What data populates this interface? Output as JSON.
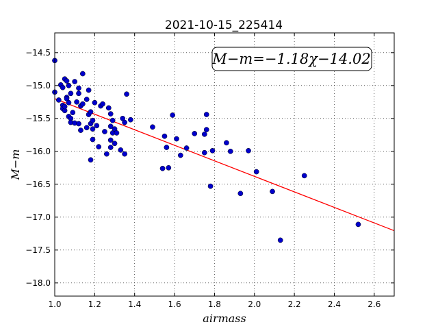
{
  "chart_data": {
    "type": "scatter",
    "title": "2021-10-15_225414",
    "xlabel": "airmass",
    "ylabel": "M−m",
    "xlim": [
      1.0,
      2.7
    ],
    "ylim": [
      -18.2,
      -14.2
    ],
    "ylim_note_inverted": true,
    "grid": true,
    "x_ticks": [
      "1.0",
      "1.2",
      "1.4",
      "1.6",
      "1.8",
      "2.0",
      "2.2",
      "2.4",
      "2.6"
    ],
    "y_ticks": [
      "−14.5",
      "−15.0",
      "−15.5",
      "−16.0",
      "−16.5",
      "−17.0",
      "−17.5",
      "−18.0"
    ],
    "annotation": "M−m=−1.18χ−14.02",
    "fit": {
      "slope": -1.18,
      "intercept": -14.02,
      "x_range": [
        1.0,
        2.7
      ],
      "color": "#ff0000"
    },
    "point_color": "#0000cc",
    "points": [
      [
        1.0,
        -14.62
      ],
      [
        1.0,
        -15.1
      ],
      [
        1.02,
        -15.22
      ],
      [
        1.03,
        -14.99
      ],
      [
        1.04,
        -15.03
      ],
      [
        1.04,
        -15.3
      ],
      [
        1.04,
        -15.35
      ],
      [
        1.05,
        -15.38
      ],
      [
        1.05,
        -15.32
      ],
      [
        1.05,
        -14.9
      ],
      [
        1.06,
        -15.18
      ],
      [
        1.06,
        -15.2
      ],
      [
        1.06,
        -14.93
      ],
      [
        1.07,
        -15.0
      ],
      [
        1.07,
        -15.47
      ],
      [
        1.07,
        -15.26
      ],
      [
        1.08,
        -15.12
      ],
      [
        1.08,
        -15.5
      ],
      [
        1.08,
        -15.56
      ],
      [
        1.09,
        -15.41
      ],
      [
        1.1,
        -14.94
      ],
      [
        1.1,
        -15.57
      ],
      [
        1.11,
        -15.25
      ],
      [
        1.12,
        -15.04
      ],
      [
        1.12,
        -15.12
      ],
      [
        1.12,
        -15.58
      ],
      [
        1.13,
        -15.31
      ],
      [
        1.13,
        -15.68
      ],
      [
        1.14,
        -14.82
      ],
      [
        1.14,
        -15.28
      ],
      [
        1.16,
        -15.21
      ],
      [
        1.16,
        -15.64
      ],
      [
        1.17,
        -15.07
      ],
      [
        1.17,
        -15.44
      ],
      [
        1.18,
        -15.4
      ],
      [
        1.18,
        -15.58
      ],
      [
        1.18,
        -16.13
      ],
      [
        1.19,
        -15.53
      ],
      [
        1.19,
        -15.66
      ],
      [
        1.19,
        -15.82
      ],
      [
        1.2,
        -15.26
      ],
      [
        1.21,
        -15.61
      ],
      [
        1.22,
        -15.93
      ],
      [
        1.23,
        -15.31
      ],
      [
        1.24,
        -15.28
      ],
      [
        1.25,
        -15.7
      ],
      [
        1.26,
        -16.04
      ],
      [
        1.27,
        -15.34
      ],
      [
        1.28,
        -15.43
      ],
      [
        1.28,
        -15.62
      ],
      [
        1.28,
        -15.83
      ],
      [
        1.28,
        -15.94
      ],
      [
        1.29,
        -15.53
      ],
      [
        1.29,
        -15.72
      ],
      [
        1.3,
        -15.66
      ],
      [
        1.3,
        -15.88
      ],
      [
        1.31,
        -15.72
      ],
      [
        1.33,
        -15.98
      ],
      [
        1.34,
        -15.5
      ],
      [
        1.35,
        -15.56
      ],
      [
        1.35,
        -16.04
      ],
      [
        1.36,
        -15.13
      ],
      [
        1.38,
        -15.52
      ],
      [
        1.49,
        -15.63
      ],
      [
        1.54,
        -16.26
      ],
      [
        1.55,
        -15.77
      ],
      [
        1.56,
        -15.94
      ],
      [
        1.57,
        -16.25
      ],
      [
        1.59,
        -15.45
      ],
      [
        1.61,
        -15.81
      ],
      [
        1.63,
        -16.06
      ],
      [
        1.66,
        -15.95
      ],
      [
        1.7,
        -15.73
      ],
      [
        1.75,
        -15.74
      ],
      [
        1.75,
        -16.02
      ],
      [
        1.76,
        -15.67
      ],
      [
        1.76,
        -15.44
      ],
      [
        1.78,
        -16.53
      ],
      [
        1.79,
        -15.99
      ],
      [
        1.86,
        -15.87
      ],
      [
        1.88,
        -16.0
      ],
      [
        1.93,
        -16.64
      ],
      [
        1.97,
        -15.99
      ],
      [
        2.01,
        -16.31
      ],
      [
        2.09,
        -16.61
      ],
      [
        2.13,
        -17.35
      ],
      [
        2.25,
        -16.37
      ],
      [
        2.52,
        -17.11
      ]
    ]
  }
}
